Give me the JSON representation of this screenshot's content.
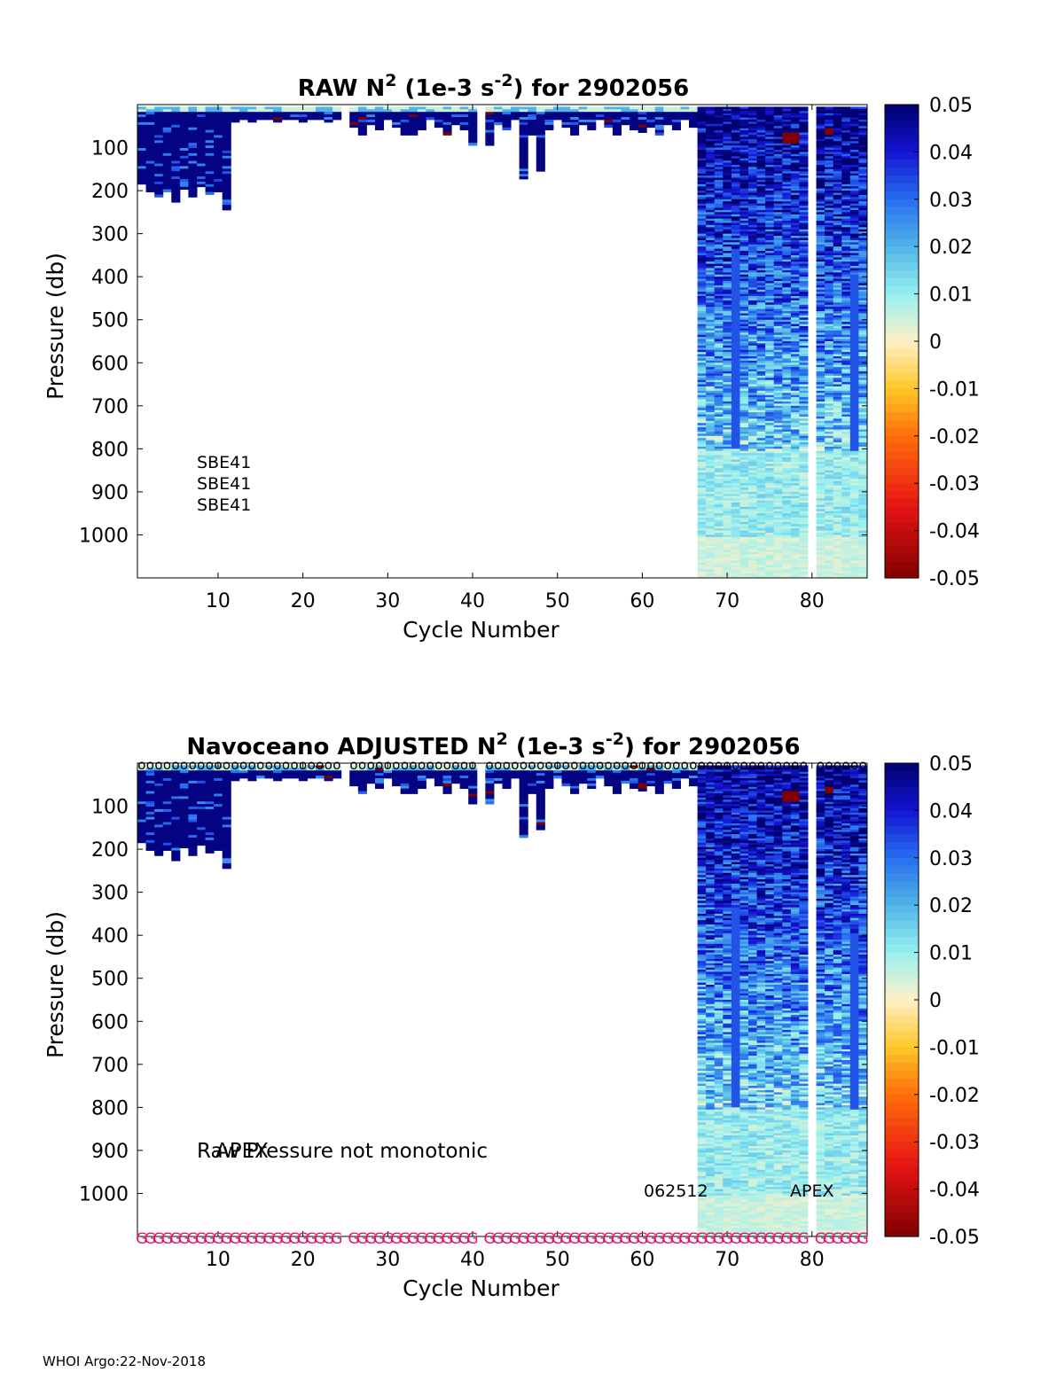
{
  "footer": "WHOI Argo:22-Nov-2018",
  "chart_data": [
    {
      "type": "heatmap",
      "title_prefix": "RAW N",
      "title_suffix": " (1e-3 s",
      "title_end": ") for 2902056",
      "title_sup1": "2",
      "title_sup2": "-2",
      "xlabel": "Cycle Number",
      "ylabel": "Pressure (db)",
      "xlim": [
        1,
        86
      ],
      "ylim": [
        0,
        1100
      ],
      "xticks": [
        10,
        20,
        30,
        40,
        50,
        60,
        70,
        80
      ],
      "yticks": [
        100,
        200,
        300,
        400,
        500,
        600,
        700,
        800,
        900,
        1000
      ],
      "colorbar": {
        "min": -0.05,
        "max": 0.05,
        "ticks": [
          "0.05",
          "0.04",
          "0.03",
          "0.02",
          "0.01",
          "0",
          "-0.01",
          "-0.02",
          "-0.03",
          "-0.04",
          "-0.05"
        ]
      },
      "annotations": [
        "SBE41",
        "SBE41",
        "SBE41"
      ],
      "missing_cycles": [
        25,
        41,
        80
      ],
      "shallow_profile_depth_by_cycle": {
        "1-11": "180-240 db",
        "12-66": "20-170 db",
        "67-86": "1100 db (full profile)"
      }
    },
    {
      "type": "heatmap",
      "title_prefix": "Navoceano  ADJUSTED N",
      "title_suffix": " (1e-3 s",
      "title_end": ") for 2902056",
      "title_sup1": "2",
      "title_sup2": "-2",
      "xlabel": "Cycle Number",
      "ylabel": "Pressure (db)",
      "xlim": [
        1,
        86
      ],
      "ylim": [
        0,
        1100
      ],
      "xticks": [
        10,
        20,
        30,
        40,
        50,
        60,
        70,
        80
      ],
      "yticks": [
        100,
        200,
        300,
        400,
        500,
        600,
        700,
        800,
        900,
        1000
      ],
      "colorbar": {
        "min": -0.05,
        "max": 0.05,
        "ticks": [
          "0.05",
          "0.04",
          "0.03",
          "0.02",
          "0.01",
          "0",
          "-0.01",
          "-0.02",
          "-0.03",
          "-0.04",
          "-0.05"
        ]
      },
      "annotations": [
        "Raw Pressure not monotonic",
        "APEX",
        "062512",
        "APEX"
      ],
      "top_marker": "o",
      "bottom_marker": "G",
      "missing_cycles": [
        25,
        41,
        80
      ]
    }
  ]
}
